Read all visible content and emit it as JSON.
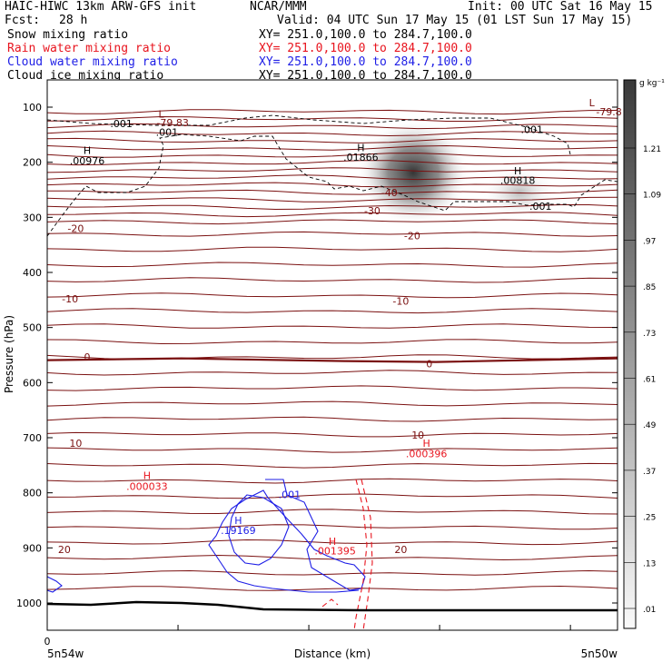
{
  "header": {
    "title": "HAIC-HIWC 13km ARW-GFS init",
    "org": "NCAR/MMM",
    "init": "Init: 00 UTC Sat 16 May 15",
    "fcst_label": "Fcst:",
    "fcst_value": "28 h",
    "valid": "Valid: 04 UTC Sun 17 May 15 (01 LST Sun 17 May 15)"
  },
  "legend": [
    {
      "name": "Snow mixing ratio",
      "xy": "XY= 251.0,100.0 to 284.7,100.0",
      "color": "#000000"
    },
    {
      "name": "Rain water mixing ratio",
      "xy": "XY= 251.0,100.0 to 284.7,100.0",
      "color": "#e8141e"
    },
    {
      "name": "Cloud water mixing ratio",
      "xy": "XY= 251.0,100.0 to 284.7,100.0",
      "color": "#1e1ee6"
    },
    {
      "name": "Cloud ice mixing ratio",
      "xy": "XY= 251.0,100.0 to 284.7,100.0",
      "color": "#000000"
    }
  ],
  "chart_data": {
    "type": "heatmap",
    "ylabel": "Pressure (hPa)",
    "xlabel": "Distance (km)",
    "y_ticks": [
      "100",
      "200",
      "300",
      "400",
      "500",
      "600",
      "700",
      "800",
      "900",
      "1000"
    ],
    "x_tick_zero": "0",
    "x_left_label": "5n54w",
    "x_right_label": "5n50w",
    "colorbar_unit": "g kg⁻¹",
    "colorbar_ticks": [
      "1.21",
      "1.09",
      ".97",
      ".85",
      ".73",
      ".61",
      ".49",
      ".37",
      ".25",
      ".13",
      ".01"
    ],
    "temperature_labels": [
      {
        "text": "-79.83",
        "p": 128,
        "d": 0.22
      },
      {
        "text": "-79.8",
        "p": 108,
        "d": 0.985
      },
      {
        "text": "-40",
        "p": 255,
        "d": 0.6
      },
      {
        "text": "-30",
        "p": 288,
        "d": 0.57
      },
      {
        "text": "-20",
        "p": 320,
        "d": 0.05
      },
      {
        "text": "-20",
        "p": 333,
        "d": 0.64
      },
      {
        "text": "-10",
        "p": 448,
        "d": 0.04
      },
      {
        "text": "-10",
        "p": 452,
        "d": 0.62
      },
      {
        "text": "0",
        "p": 553,
        "d": 0.07
      },
      {
        "text": "0",
        "p": 566,
        "d": 0.67
      },
      {
        "text": "10",
        "p": 710,
        "d": 0.05
      },
      {
        "text": "10",
        "p": 695,
        "d": 0.65
      },
      {
        "text": "20",
        "p": 903,
        "d": 0.03
      },
      {
        "text": "20",
        "p": 903,
        "d": 0.62
      }
    ],
    "extrema_labels": [
      {
        "text": "L",
        "p": 112,
        "d": 0.2,
        "color": "#7a1010"
      },
      {
        "text": "L",
        "p": 92,
        "d": 0.955,
        "color": "#7a1010"
      },
      {
        "text": "H",
        "p": 178,
        "d": 0.07,
        "color": "#000000"
      },
      {
        "text": ".00976",
        "p": 197,
        "d": 0.07,
        "color": "#000000"
      },
      {
        "text": "H",
        "p": 173,
        "d": 0.55,
        "color": "#000000"
      },
      {
        "text": ".01866",
        "p": 191,
        "d": 0.55,
        "color": "#000000"
      },
      {
        "text": "H",
        "p": 215,
        "d": 0.825,
        "color": "#000000"
      },
      {
        "text": ".00818",
        "p": 233,
        "d": 0.825,
        "color": "#000000"
      },
      {
        "text": ".001",
        "p": 130,
        "d": 0.13,
        "color": "#000000"
      },
      {
        "text": ".001",
        "p": 145,
        "d": 0.21,
        "color": "#000000"
      },
      {
        "text": ".001",
        "p": 140,
        "d": 0.85,
        "color": "#000000"
      },
      {
        "text": ".001",
        "p": 280,
        "d": 0.865,
        "color": "#000000"
      },
      {
        "text": "H",
        "p": 768,
        "d": 0.175,
        "color": "#e8141e"
      },
      {
        "text": ".000033",
        "p": 788,
        "d": 0.175,
        "color": "#e8141e"
      },
      {
        "text": "H",
        "p": 710,
        "d": 0.665,
        "color": "#e8141e"
      },
      {
        "text": ".000396",
        "p": 729,
        "d": 0.665,
        "color": "#e8141e"
      },
      {
        "text": "H",
        "p": 888,
        "d": 0.5,
        "color": "#e8141e"
      },
      {
        "text": ".001395",
        "p": 905,
        "d": 0.505,
        "color": "#e8141e"
      },
      {
        "text": "H",
        "p": 850,
        "d": 0.335,
        "color": "#1e1ee6"
      },
      {
        "text": ".19169",
        "p": 868,
        "d": 0.335,
        "color": "#1e1ee6"
      },
      {
        "text": ".001",
        "p": 803,
        "d": 0.425,
        "color": "#1e1ee6"
      }
    ],
    "grid": false
  }
}
